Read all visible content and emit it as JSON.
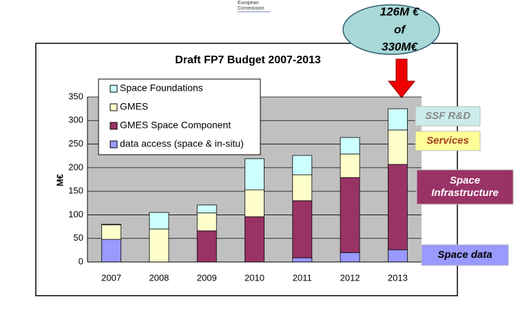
{
  "logo": [
    "European",
    "Commission"
  ],
  "chart_data": {
    "type": "bar",
    "stacked": true,
    "title": "Draft FP7 Budget 2007-2013",
    "y_label": "M€",
    "categories": [
      "2007",
      "2008",
      "2009",
      "2010",
      "2011",
      "2012",
      "2013"
    ],
    "series": [
      {
        "name": "data access (space & in-situ)",
        "color": "#9999ff",
        "values": [
          48,
          0,
          0,
          0,
          9,
          20,
          26
        ]
      },
      {
        "name": "GMES Space Component",
        "color": "#993366",
        "values": [
          0,
          0,
          66,
          96,
          121,
          159,
          181
        ]
      },
      {
        "name": "GMES",
        "color": "#ffffcc",
        "values": [
          31,
          70,
          38,
          57,
          55,
          50,
          73
        ]
      },
      {
        "name": "Space Foundations",
        "color": "#ccffff",
        "values": [
          1,
          35,
          17,
          66,
          41,
          35,
          45
        ]
      }
    ],
    "ylim": [
      0,
      350
    ],
    "yticks": [
      0,
      50,
      100,
      150,
      200,
      250,
      300,
      350
    ],
    "grid": true,
    "callout": [
      "126M €",
      "of",
      "330M€"
    ],
    "side_labels": [
      {
        "text": "SSF R&D",
        "color": "#ccecec"
      },
      {
        "text": "Services",
        "color": "#ffff99"
      },
      {
        "text": "Space Infrastructure",
        "color": "#993366"
      },
      {
        "text": "Space data",
        "color": "#9999ff"
      }
    ]
  }
}
